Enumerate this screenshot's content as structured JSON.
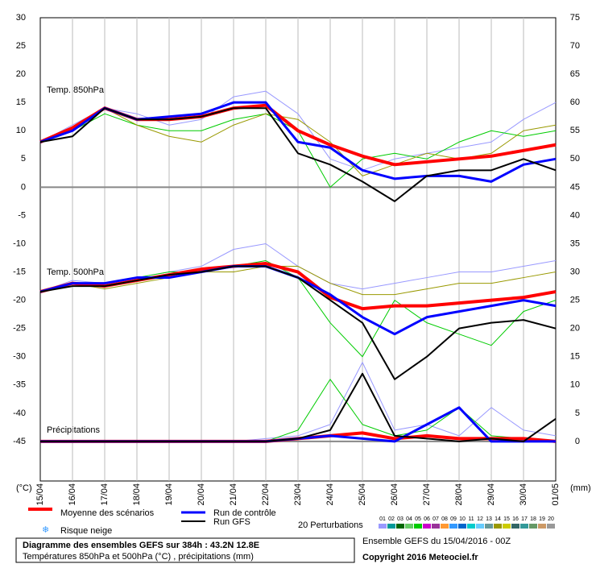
{
  "chart_data": {
    "type": "line",
    "categories": [
      "15/04",
      "16/04",
      "17/04",
      "18/04",
      "19/04",
      "20/04",
      "21/04",
      "22/04",
      "23/04",
      "24/04",
      "25/04",
      "26/04",
      "27/04",
      "28/04",
      "29/04",
      "30/04",
      "01/05"
    ],
    "ylim": [
      -52,
      30
    ],
    "yticks": [
      30,
      25,
      20,
      15,
      10,
      5,
      0,
      -5,
      -10,
      -15,
      -20,
      -25,
      -30,
      -35,
      -40,
      -45
    ],
    "y2lim": [
      -7,
      75
    ],
    "y2ticks": [
      75,
      70,
      65,
      60,
      55,
      50,
      45,
      40,
      35,
      30,
      25,
      20,
      15,
      10,
      5,
      0
    ],
    "ylabel": "(°C)",
    "y2label": "(mm)",
    "grid": true,
    "annotations": [
      "Temp. 850hPa",
      "Temp. 500hPa",
      "Précipitations"
    ],
    "series": [
      {
        "name": "01",
        "color": "#9999ff",
        "line_width": 1,
        "values": [
          8,
          11,
          14,
          13,
          11,
          12,
          16,
          17,
          13,
          5,
          3,
          5,
          6,
          7,
          8,
          12,
          15
        ]
      },
      {
        "name": "05",
        "color": "#00cc00",
        "line_width": 1,
        "values": [
          8,
          10,
          13,
          11,
          10,
          10,
          12,
          13,
          10,
          0,
          5,
          6,
          5,
          8,
          10,
          9,
          10
        ]
      },
      {
        "name": "14",
        "color": "#999900",
        "line_width": 1,
        "values": [
          8,
          10,
          14,
          11,
          9,
          8,
          11,
          13,
          12,
          8,
          2,
          4,
          6,
          5,
          6,
          10,
          11
        ]
      },
      {
        "name": "Moyenne des scénarios",
        "color": "#ff0000",
        "line_width": 4,
        "values": [
          8,
          10.5,
          14,
          12,
          12,
          12.5,
          14,
          14.5,
          10,
          7.5,
          5.5,
          4,
          4.5,
          5,
          5.5,
          6.5,
          7.5
        ]
      },
      {
        "name": "Run de contrôle",
        "color": "#0000ff",
        "line_width": 3,
        "values": [
          8,
          10,
          14,
          12,
          12.5,
          13,
          15,
          15,
          8,
          7,
          3,
          1.5,
          2,
          2,
          1,
          4,
          5
        ]
      },
      {
        "name": "Run GFS",
        "color": "#000000",
        "line_width": 2,
        "values": [
          8,
          9,
          14,
          12,
          12,
          12.5,
          14,
          14,
          6,
          4,
          1,
          -2.5,
          2,
          3,
          3,
          5,
          3
        ]
      },
      {
        "name": "01",
        "color": "#9999ff",
        "line_width": 1,
        "values": [
          -18.5,
          -16.5,
          -17,
          -16,
          -15,
          -14,
          -11,
          -10,
          -14,
          -17,
          -18,
          -17,
          -16,
          -15,
          -15,
          -14,
          -13
        ]
      },
      {
        "name": "05",
        "color": "#00cc00",
        "line_width": 1,
        "values": [
          -18.5,
          -17,
          -17,
          -16,
          -15,
          -15,
          -14,
          -13,
          -16,
          -24,
          -30,
          -20,
          -24,
          -26,
          -28,
          -22,
          -20
        ]
      },
      {
        "name": "14",
        "color": "#999900",
        "line_width": 1,
        "values": [
          -18.5,
          -17,
          -18,
          -17,
          -16,
          -15,
          -15,
          -14,
          -14,
          -17,
          -19,
          -19,
          -18,
          -17,
          -17,
          -16,
          -15
        ]
      },
      {
        "name": "Moyenne des scénarios",
        "color": "#ff0000",
        "line_width": 4,
        "values": [
          -18.5,
          -17,
          -17.5,
          -16.5,
          -15.5,
          -14.5,
          -14,
          -13.5,
          -15,
          -19.5,
          -21.5,
          -21,
          -21,
          -20.5,
          -20,
          -19.5,
          -18.5
        ]
      },
      {
        "name": "Run de contrôle",
        "color": "#0000ff",
        "line_width": 3,
        "values": [
          -18.5,
          -17,
          -17,
          -16,
          -16,
          -15,
          -14,
          -14,
          -16,
          -19,
          -23,
          -26,
          -23,
          -22,
          -21,
          -20,
          -21
        ]
      },
      {
        "name": "Run GFS",
        "color": "#000000",
        "line_width": 2,
        "values": [
          -18.5,
          -17.5,
          -17.5,
          -16.5,
          -15.5,
          -15,
          -14,
          -14,
          -16,
          -20,
          -24,
          -34,
          -30,
          -25,
          -24,
          -23.5,
          -25
        ]
      },
      {
        "name": "01",
        "color": "#9999ff",
        "line_width": 1,
        "axis": "y2",
        "values": [
          0,
          0,
          0,
          0,
          0,
          0,
          0,
          0.5,
          1,
          3,
          14,
          2,
          3,
          1,
          6,
          2,
          1
        ]
      },
      {
        "name": "05",
        "color": "#00cc00",
        "line_width": 1,
        "axis": "y2",
        "values": [
          0,
          0,
          0,
          0,
          0,
          0,
          0,
          0,
          2,
          11,
          3,
          1,
          2,
          6,
          1,
          0.5,
          0
        ]
      },
      {
        "name": "Moyenne des scénarios",
        "color": "#ff0000",
        "line_width": 4,
        "axis": "y2",
        "values": [
          0,
          0,
          0,
          0,
          0,
          0,
          0,
          0,
          0.5,
          1,
          1.5,
          0.5,
          1,
          0.5,
          0.5,
          0.5,
          0
        ]
      },
      {
        "name": "Run de contrôle",
        "color": "#0000ff",
        "line_width": 3,
        "axis": "y2",
        "values": [
          0,
          0,
          0,
          0,
          0,
          0,
          0,
          0,
          0.5,
          1,
          0.5,
          0,
          3,
          6,
          0,
          0,
          0
        ]
      },
      {
        "name": "Run GFS",
        "color": "#000000",
        "line_width": 2,
        "axis": "y2",
        "values": [
          0,
          0,
          0,
          0,
          0,
          0,
          0,
          0,
          0.5,
          2,
          12,
          1,
          0.5,
          0,
          0.5,
          0,
          4
        ]
      }
    ],
    "snow_label": "Risque neige",
    "perturbations": {
      "title": "20 Perturbations",
      "labels": [
        "01",
        "02",
        "03",
        "04",
        "05",
        "06",
        "07",
        "08",
        "09",
        "10",
        "11",
        "12",
        "13",
        "14",
        "15",
        "16",
        "17",
        "18",
        "19",
        "20"
      ],
      "colors": [
        "#9999ff",
        "#009999",
        "#006600",
        "#66cc66",
        "#00cc00",
        "#cc00cc",
        "#993399",
        "#ff9933",
        "#3399ff",
        "#0066cc",
        "#00cccc",
        "#66ccff",
        "#669999",
        "#999900",
        "#cccc00",
        "#336666",
        "#339999",
        "#669966",
        "#cc9966",
        "#999999"
      ]
    },
    "footer_box": [
      "Diagramme des ensembles GEFS sur 384h : 43.2N 12.8E",
      "Températures 850hPa et 500hPa (°C) , précipitations (mm)"
    ],
    "run_info": "Ensemble GEFS du 15/04/2016 - 00Z",
    "copyright": "Copyright 2016 Meteociel.fr"
  }
}
